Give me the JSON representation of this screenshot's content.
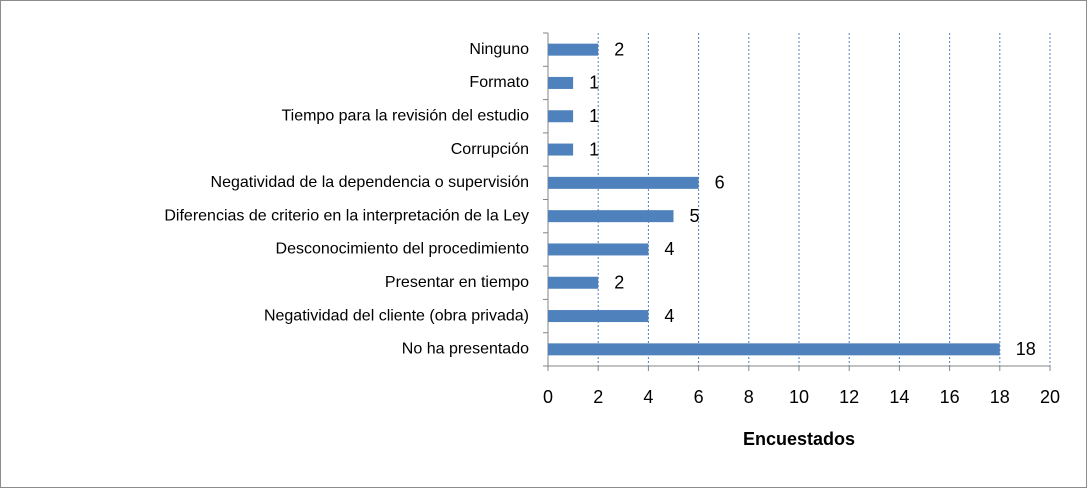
{
  "chart_data": {
    "type": "bar",
    "orientation": "horizontal",
    "categories": [
      "Ninguno",
      "Formato",
      "Tiempo para la revisión del estudio",
      "Corrupción",
      "Negatividad de la dependencia o supervisión",
      "Diferencias de criterio en la interpretación de la Ley",
      "Desconocimiento del procedimiento",
      "Presentar en tiempo",
      "Negatividad del cliente (obra privada)",
      "No ha presentado"
    ],
    "values": [
      2,
      1,
      1,
      1,
      6,
      5,
      4,
      2,
      4,
      18
    ],
    "color": "#4f81bd",
    "x_label": "Encuestados",
    "xlim": [
      0,
      20
    ],
    "xticks": [
      0,
      2,
      4,
      6,
      8,
      10,
      12,
      14,
      16,
      18,
      20
    ],
    "grid": true
  }
}
